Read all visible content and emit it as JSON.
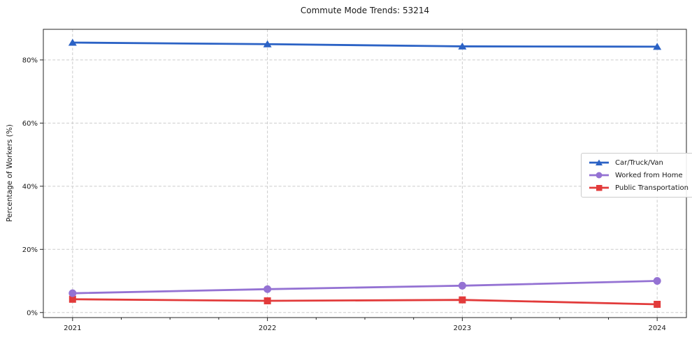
{
  "chart_data": {
    "type": "line",
    "title": "Commute Mode Trends: 53214",
    "xlabel": "",
    "ylabel": "Percentage of Workers (%)",
    "categories": [
      "2021",
      "2022",
      "2023",
      "2024"
    ],
    "series": [
      {
        "name": "Car/Truck/Van",
        "color": "#2b62c5",
        "marker": "triangle",
        "values": [
          85.5,
          85.0,
          84.3,
          84.2
        ]
      },
      {
        "name": "Worked from Home",
        "color": "#9472d3",
        "marker": "circle",
        "values": [
          6.1,
          7.4,
          8.5,
          10.0
        ]
      },
      {
        "name": "Public Transportation",
        "color": "#e23b3b",
        "marker": "square",
        "values": [
          4.2,
          3.7,
          4.0,
          2.6
        ]
      }
    ],
    "draw_order": [
      0,
      2,
      1
    ],
    "yticks": [
      0,
      20,
      40,
      60,
      80
    ],
    "ytick_labels": [
      "0%",
      "20%",
      "40%",
      "60%",
      "80%"
    ],
    "ylim": [
      -1.6,
      89.7
    ],
    "grid": true,
    "grid_style": "dashed",
    "grid_color": "#cccccc",
    "axis_color": "#262626",
    "text_color": "#1a1a1a",
    "background": "#ffffff",
    "legend_position": "center right"
  }
}
